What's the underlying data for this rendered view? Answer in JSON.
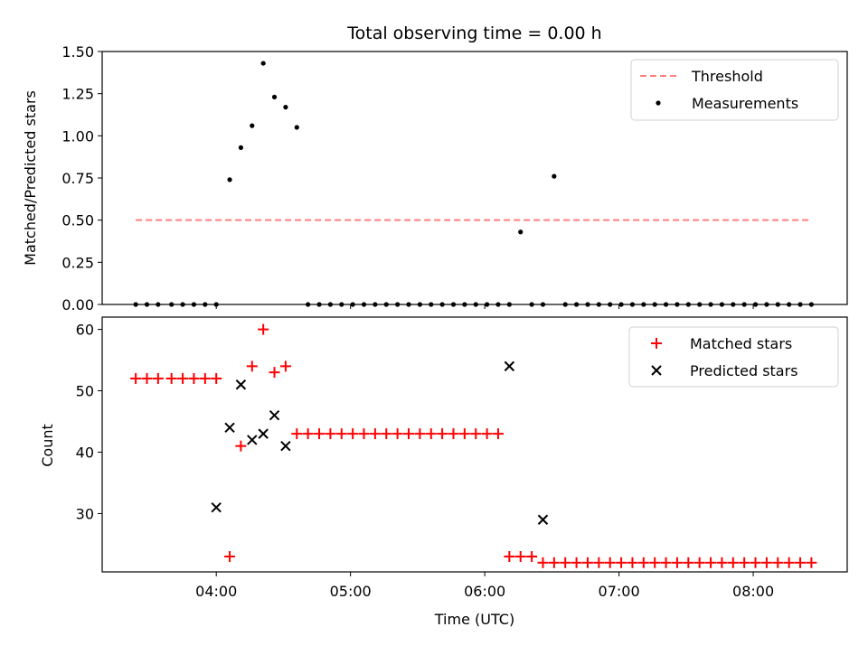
{
  "chart_data": [
    {
      "type": "scatter",
      "title": "Total observing time = 0.00 h",
      "xlabel": "",
      "ylabel": "Matched/Predicted stars",
      "ylim": [
        0,
        1.5
      ],
      "yticks": [
        "0.00",
        "0.25",
        "0.50",
        "0.75",
        "1.00",
        "1.25",
        "1.50"
      ],
      "xlim_hours": [
        3.15,
        8.7
      ],
      "xticks": [
        "04:00",
        "05:00",
        "06:00",
        "07:00",
        "08:00"
      ],
      "legend": {
        "position": "top-right"
      },
      "threshold": {
        "name": "Threshold",
        "value": 0.5,
        "x_start": "03:24",
        "x_end": "08:26",
        "color": "#ff7f7f"
      },
      "series": [
        {
          "name": "Measurements",
          "color": "#000000",
          "marker": "dot",
          "x": [
            "03:24",
            "03:29",
            "03:34",
            "03:40",
            "03:45",
            "03:50",
            "03:55",
            "04:00",
            "04:06",
            "04:11",
            "04:16",
            "04:21",
            "04:26",
            "04:31",
            "04:36",
            "04:41",
            "04:46",
            "04:51",
            "04:56",
            "05:01",
            "05:06",
            "05:11",
            "05:16",
            "05:21",
            "05:26",
            "05:31",
            "05:36",
            "05:41",
            "05:46",
            "05:51",
            "05:56",
            "06:01",
            "06:06",
            "06:11",
            "06:16",
            "06:21",
            "06:26",
            "06:31",
            "06:36",
            "06:41",
            "06:46",
            "06:51",
            "06:56",
            "07:01",
            "07:06",
            "07:11",
            "07:16",
            "07:21",
            "07:26",
            "07:31",
            "07:36",
            "07:41",
            "07:46",
            "07:51",
            "07:56",
            "08:01",
            "08:06",
            "08:11",
            "08:16",
            "08:21",
            "08:26"
          ],
          "y": [
            0,
            0,
            0,
            0,
            0,
            0,
            0,
            0,
            0.74,
            0.93,
            1.06,
            1.43,
            1.23,
            1.17,
            1.05,
            0,
            0,
            0,
            0,
            0,
            0,
            0,
            0,
            0,
            0,
            0,
            0,
            0,
            0,
            0,
            0,
            0,
            0,
            0,
            0.43,
            0,
            0,
            0.76,
            0,
            0,
            0,
            0,
            0,
            0,
            0,
            0,
            0,
            0,
            0,
            0,
            0,
            0,
            0,
            0,
            0,
            0,
            0,
            0,
            0,
            0,
            0
          ]
        }
      ]
    },
    {
      "type": "scatter",
      "title": "",
      "xlabel": "Time (UTC)",
      "ylabel": "Count",
      "ylim": [
        20.5,
        62
      ],
      "yticks": [
        "30",
        "40",
        "50",
        "60"
      ],
      "xlim_hours": [
        3.15,
        8.7
      ],
      "xticks": [
        "04:00",
        "05:00",
        "06:00",
        "07:00",
        "08:00"
      ],
      "legend": {
        "position": "top-right"
      },
      "series": [
        {
          "name": "Matched stars",
          "color": "#ff0000",
          "marker": "plus",
          "x": [
            "03:24",
            "03:29",
            "03:34",
            "03:40",
            "03:45",
            "03:50",
            "03:55",
            "04:00",
            "04:06",
            "04:11",
            "04:16",
            "04:21",
            "04:26",
            "04:31",
            "04:36",
            "04:41",
            "04:46",
            "04:51",
            "04:56",
            "05:01",
            "05:06",
            "05:11",
            "05:16",
            "05:21",
            "05:26",
            "05:31",
            "05:36",
            "05:41",
            "05:46",
            "05:51",
            "05:56",
            "06:01",
            "06:06",
            "06:11",
            "06:16",
            "06:21",
            "06:26",
            "06:31",
            "06:36",
            "06:41",
            "06:46",
            "06:51",
            "06:56",
            "07:01",
            "07:06",
            "07:11",
            "07:16",
            "07:21",
            "07:26",
            "07:31",
            "07:36",
            "07:41",
            "07:46",
            "07:51",
            "07:56",
            "08:01",
            "08:06",
            "08:11",
            "08:16",
            "08:21",
            "08:26"
          ],
          "y": [
            52,
            52,
            52,
            52,
            52,
            52,
            52,
            52,
            23,
            41,
            54,
            60,
            53,
            54,
            43,
            43,
            43,
            43,
            43,
            43,
            43,
            43,
            43,
            43,
            43,
            43,
            43,
            43,
            43,
            43,
            43,
            43,
            43,
            23,
            23,
            23,
            22,
            22,
            22,
            22,
            22,
            22,
            22,
            22,
            22,
            22,
            22,
            22,
            22,
            22,
            22,
            22,
            22,
            22,
            22,
            22,
            22,
            22,
            22,
            22,
            22
          ]
        },
        {
          "name": "Predicted stars",
          "color": "#000000",
          "marker": "x",
          "x": [
            "04:00",
            "04:06",
            "04:11",
            "04:16",
            "04:21",
            "04:26",
            "04:31",
            "06:11",
            "06:26"
          ],
          "y": [
            31,
            44,
            51,
            42,
            43,
            46,
            41,
            54,
            29
          ]
        }
      ]
    }
  ]
}
